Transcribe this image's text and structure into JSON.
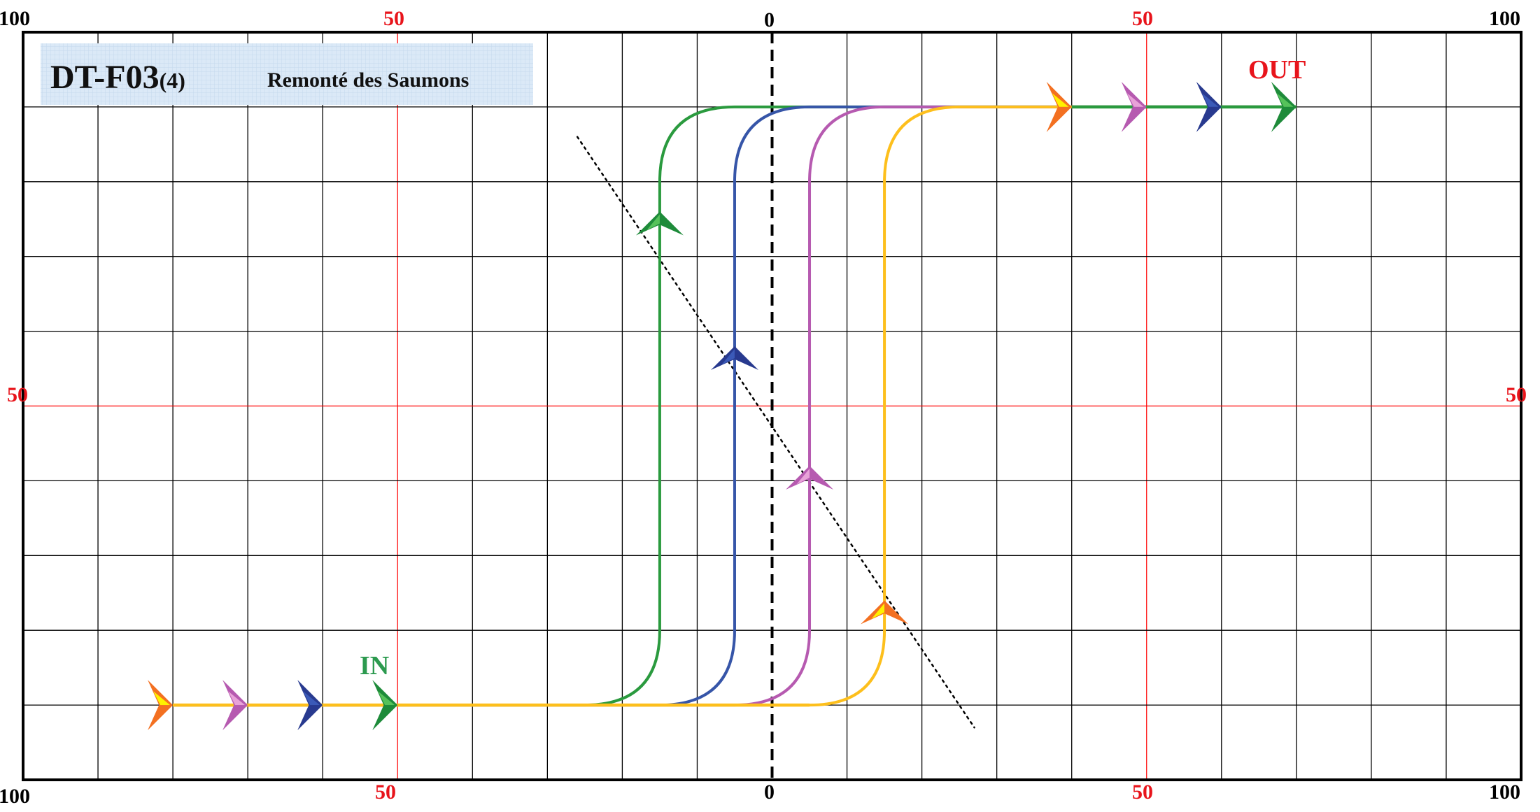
{
  "header": {
    "code": "DT-F03",
    "code_suffix": "(4)",
    "subtitle": "Remonté des Saumons"
  },
  "labels": {
    "in": "IN",
    "out": "OUT"
  },
  "scale": {
    "top": [
      "100",
      "50",
      "0",
      "50",
      "100"
    ],
    "bottom": [
      "100",
      "50",
      "0",
      "50",
      "100"
    ],
    "left_mid": "50",
    "right_mid": "50"
  },
  "grid": {
    "x_range": [
      -100,
      100
    ],
    "y_range": [
      0,
      100
    ],
    "minor_step": 10,
    "major_step": 50
  },
  "colors": {
    "grid_minor": "#000000",
    "grid_major": "#ff0000",
    "scale_accent": "#e8141b",
    "scale_dark": "#000000",
    "title_box": "#d9e8f6",
    "in_label": "#2c9a4f",
    "out_label": "#e8141b"
  },
  "paths": [
    {
      "name": "green",
      "color": "#2a9a3e",
      "x_turn": -15,
      "x_start_curve": -25,
      "x_end_curve": -5
    },
    {
      "name": "blue",
      "color": "#3655a8",
      "x_turn": -5,
      "x_start_curve": -15,
      "x_end_curve": 5
    },
    {
      "name": "purple",
      "color": "#b65ab0",
      "x_turn": 5,
      "x_start_curve": -5,
      "x_end_curve": 15
    },
    {
      "name": "yellow",
      "color": "#fdbf1c",
      "x_turn": 15,
      "x_start_curve": 5,
      "x_end_curve": 25
    }
  ],
  "y_in": 10,
  "y_out": 90,
  "in_arrows": [
    {
      "x": -80,
      "color": "orange-yellow"
    },
    {
      "x": -70,
      "color": "purple"
    },
    {
      "x": -60,
      "color": "blue"
    },
    {
      "x": -50,
      "color": "green"
    }
  ],
  "out_arrows": [
    {
      "x": 40,
      "color": "orange-yellow"
    },
    {
      "x": 50,
      "color": "purple"
    },
    {
      "x": 60,
      "color": "blue"
    },
    {
      "x": 70,
      "color": "green"
    }
  ],
  "vertical_arrows": [
    {
      "x": -15,
      "y": 76,
      "color": "green"
    },
    {
      "x": -5,
      "y": 58,
      "color": "blue"
    },
    {
      "x": 5,
      "y": 42,
      "color": "purple"
    },
    {
      "x": 15,
      "y": 24,
      "color": "orange-yellow"
    }
  ],
  "diagonal": {
    "x1": -26,
    "y1": 86,
    "x2": 27,
    "y2": 7
  }
}
